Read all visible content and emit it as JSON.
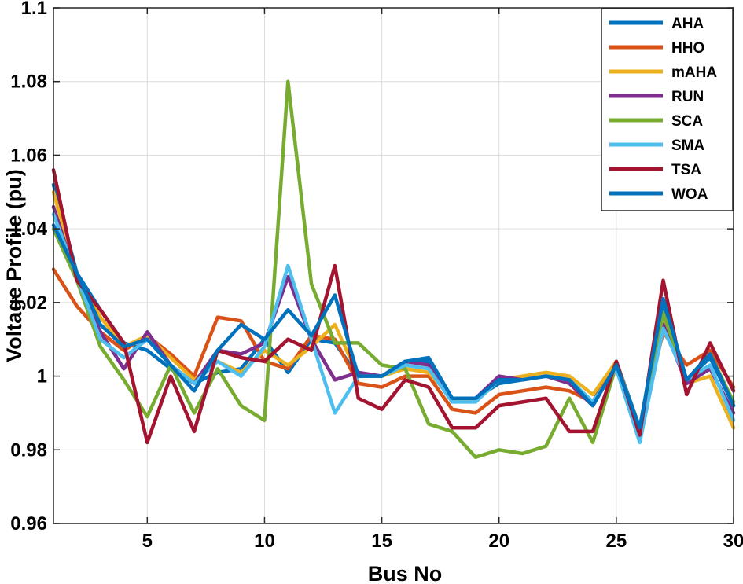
{
  "chart_data": {
    "type": "line",
    "title": "",
    "xlabel": "Bus No",
    "ylabel": "Voltage Profile (pu)",
    "xlim": [
      1,
      30
    ],
    "ylim": [
      0.96,
      1.1
    ],
    "x_ticks": [
      5,
      10,
      15,
      20,
      25,
      30
    ],
    "x_tick_labels": [
      "5",
      "10",
      "15",
      "20",
      "25",
      "30"
    ],
    "y_ticks": [
      0.96,
      0.98,
      1.0,
      1.02,
      1.04,
      1.06,
      1.08,
      1.1
    ],
    "y_tick_labels": [
      "0.96",
      "0.98",
      "1",
      "1.02",
      "1.04",
      "1.06",
      "1.08",
      "1.1"
    ],
    "grid": true,
    "legend_position": "top-right",
    "x": [
      1,
      2,
      3,
      4,
      5,
      6,
      7,
      8,
      9,
      10,
      11,
      12,
      13,
      14,
      15,
      16,
      17,
      18,
      19,
      20,
      21,
      22,
      23,
      24,
      25,
      26,
      27,
      28,
      29,
      30
    ],
    "series": [
      {
        "name": "AHA",
        "color": "#0072BD",
        "values": [
          1.052,
          1.028,
          1.018,
          1.009,
          1.007,
          1.002,
          0.998,
          1.001,
          1.002,
          1.01,
          1.001,
          1.01,
          1.009,
          1.0,
          1.0,
          1.004,
          1.004,
          0.994,
          0.994,
          0.998,
          0.999,
          1.0,
          0.999,
          0.993,
          1.004,
          0.986,
          1.02,
          0.999,
          1.005,
          0.992
        ]
      },
      {
        "name": "HHO",
        "color": "#D95319",
        "values": [
          1.029,
          1.019,
          1.012,
          1.007,
          1.011,
          1.006,
          1.0,
          1.016,
          1.015,
          1.004,
          1.002,
          1.011,
          1.01,
          0.998,
          0.997,
          1.0,
          1.0,
          0.991,
          0.99,
          0.995,
          0.996,
          0.997,
          0.996,
          0.993,
          1.003,
          0.986,
          1.012,
          1.003,
          1.007,
          0.997
        ]
      },
      {
        "name": "mAHA",
        "color": "#EDB120",
        "values": [
          1.05,
          1.027,
          1.016,
          1.008,
          1.011,
          1.005,
          0.999,
          1.004,
          1.001,
          1.007,
          1.003,
          1.008,
          1.014,
          1.0,
          1.0,
          1.002,
          1.001,
          0.994,
          0.993,
          0.999,
          1.0,
          1.001,
          1.0,
          0.995,
          1.004,
          0.985,
          1.015,
          0.998,
          1.0,
          0.986
        ]
      },
      {
        "name": "RUN",
        "color": "#7E2F8E",
        "values": [
          1.046,
          1.026,
          1.012,
          1.002,
          1.012,
          1.003,
          0.998,
          1.007,
          1.006,
          1.009,
          1.027,
          1.01,
          0.999,
          1.001,
          1.0,
          1.004,
          1.003,
          0.994,
          0.994,
          1.0,
          0.999,
          1.0,
          0.998,
          0.992,
          1.003,
          0.984,
          1.014,
          0.998,
          1.002,
          0.99
        ]
      },
      {
        "name": "SCA",
        "color": "#77AC30",
        "values": [
          1.04,
          1.026,
          1.008,
          0.999,
          0.989,
          1.003,
          0.99,
          1.002,
          0.992,
          0.988,
          1.08,
          1.025,
          1.009,
          1.009,
          1.003,
          1.002,
          0.987,
          0.985,
          0.978,
          0.98,
          0.979,
          0.981,
          0.994,
          0.982,
          1.003,
          0.986,
          1.017,
          0.999,
          1.006,
          0.993
        ]
      },
      {
        "name": "SMA",
        "color": "#4DBEEE",
        "values": [
          1.044,
          1.027,
          1.01,
          1.005,
          1.01,
          1.003,
          0.998,
          1.004,
          1.0,
          1.008,
          1.03,
          1.01,
          0.99,
          1.0,
          1.0,
          1.003,
          1.002,
          0.993,
          0.993,
          0.999,
          0.999,
          1.0,
          0.999,
          0.993,
          1.002,
          0.982,
          1.013,
          0.999,
          1.003,
          0.988
        ]
      },
      {
        "name": "TSA",
        "color": "#A2142F",
        "values": [
          1.056,
          1.026,
          1.018,
          1.009,
          0.982,
          1.0,
          0.985,
          1.007,
          1.005,
          1.004,
          1.01,
          1.007,
          1.03,
          0.994,
          0.991,
          0.999,
          0.997,
          0.986,
          0.986,
          0.992,
          0.993,
          0.994,
          0.985,
          0.985,
          1.004,
          0.984,
          1.026,
          0.995,
          1.009,
          0.996
        ]
      },
      {
        "name": "WOA",
        "color": "#0072BD",
        "values": [
          1.041,
          1.028,
          1.014,
          1.008,
          1.01,
          1.003,
          0.996,
          1.007,
          1.014,
          1.01,
          1.018,
          1.011,
          1.022,
          1.0,
          1.0,
          1.004,
          1.005,
          0.994,
          0.994,
          0.999,
          0.999,
          1.0,
          0.999,
          0.992,
          1.003,
          0.986,
          1.021,
          0.999,
          1.006,
          0.992
        ]
      }
    ]
  }
}
